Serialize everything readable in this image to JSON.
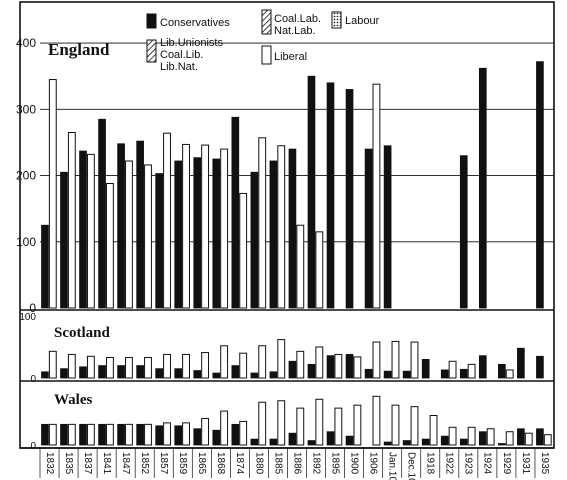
{
  "chart_data": [
    {
      "type": "bar",
      "panel": "england",
      "title": "England",
      "ylim": [
        0,
        450
      ],
      "yticks": [
        "0",
        "100",
        "200",
        "300",
        "400"
      ],
      "categories": [
        "1832",
        "1835",
        "1837",
        "1841",
        "1847",
        "1852",
        "1857",
        "1859",
        "1865",
        "1868",
        "1874",
        "1880",
        "1885",
        "1886",
        "1892",
        "1895",
        "1900",
        "1906",
        "Jan.10",
        "Dec.10",
        "1918",
        "1922",
        "1923",
        "1924",
        "1929",
        "1931",
        "1935"
      ],
      "series": [
        {
          "name": "Conservatives",
          "values": [
            125,
            205,
            237,
            285,
            248,
            252,
            203,
            222,
            227,
            225,
            288,
            205,
            222,
            240,
            350,
            340,
            330,
            240,
            245,
            0,
            0,
            0,
            230,
            362,
            0,
            0,
            372
          ]
        },
        {
          "name": "Lib.Unionists",
          "values": [
            0,
            0,
            0,
            0,
            0,
            0,
            0,
            0,
            0,
            0,
            0,
            0,
            0,
            0,
            0,
            0,
            0,
            0,
            0,
            0,
            0,
            0,
            0,
            0,
            0,
            0,
            0
          ]
        },
        {
          "name": "Coal.Lib.",
          "values": [
            0,
            0,
            0,
            0,
            0,
            0,
            0,
            0,
            0,
            0,
            0,
            0,
            0,
            0,
            0,
            0,
            0,
            0,
            0,
            0,
            0,
            0,
            0,
            0,
            0,
            0,
            0
          ]
        },
        {
          "name": "Lib.Nat.",
          "values": [
            0,
            0,
            0,
            0,
            0,
            0,
            0,
            0,
            0,
            0,
            0,
            0,
            0,
            0,
            0,
            0,
            0,
            0,
            0,
            0,
            0,
            0,
            0,
            0,
            0,
            0,
            0
          ]
        },
        {
          "name": "Coal.Lab.",
          "values": [
            0,
            0,
            0,
            0,
            0,
            0,
            0,
            0,
            0,
            0,
            0,
            0,
            0,
            0,
            0,
            0,
            0,
            0,
            0,
            0,
            0,
            0,
            0,
            0,
            0,
            0,
            0
          ]
        },
        {
          "name": "Nat.Lab.",
          "values": [
            0,
            0,
            0,
            0,
            0,
            0,
            0,
            0,
            0,
            0,
            0,
            0,
            0,
            0,
            0,
            0,
            0,
            0,
            0,
            0,
            0,
            0,
            0,
            0,
            0,
            0,
            0
          ]
        },
        {
          "name": "Labour",
          "values": [
            0,
            0,
            0,
            0,
            0,
            0,
            0,
            0,
            0,
            0,
            0,
            0,
            0,
            0,
            0,
            0,
            0,
            0,
            0,
            0,
            0,
            0,
            0,
            0,
            0,
            0,
            0
          ]
        },
        {
          "name": "Liberal",
          "values": [
            345,
            265,
            232,
            188,
            222,
            216,
            264,
            247,
            246,
            240,
            173,
            257,
            245,
            125,
            115,
            0,
            0,
            338,
            0,
            0,
            0,
            0,
            0,
            0,
            0,
            0,
            0
          ]
        }
      ]
    },
    {
      "type": "bar",
      "panel": "scotland",
      "title": "Scotland",
      "ylim": [
        0,
        100
      ],
      "yticks": [
        "0",
        "100"
      ],
      "categories": [
        "1832",
        "1835",
        "1837",
        "1841",
        "1847",
        "1852",
        "1857",
        "1859",
        "1865",
        "1868",
        "1874",
        "1880",
        "1885",
        "1886",
        "1892",
        "1895",
        "1900",
        "1906",
        "Jan.10",
        "Dec.10",
        "1918",
        "1922",
        "1923",
        "1924",
        "1929",
        "1931",
        "1935"
      ],
      "series": [
        {
          "name": "Conservatives",
          "values": [
            10,
            15,
            18,
            20,
            20,
            20,
            15,
            15,
            12,
            8,
            20,
            8,
            10,
            27,
            22,
            36,
            38,
            14,
            11,
            11,
            30,
            13,
            14,
            36,
            22,
            48,
            35
          ]
        },
        {
          "name": "Liberal",
          "values": [
            43,
            38,
            35,
            33,
            33,
            33,
            38,
            38,
            41,
            52,
            40,
            52,
            62,
            43,
            50,
            38,
            34,
            58,
            59,
            58,
            0,
            27,
            22,
            0,
            13,
            0,
            0
          ]
        }
      ]
    },
    {
      "type": "bar",
      "panel": "wales",
      "title": "Wales",
      "ylim": [
        0,
        40
      ],
      "yticks": [
        "0"
      ],
      "categories": [
        "1832",
        "1835",
        "1837",
        "1841",
        "1847",
        "1852",
        "1857",
        "1859",
        "1865",
        "1868",
        "1874",
        "1880",
        "1885",
        "1886",
        "1892",
        "1895",
        "1900",
        "1906",
        "Jan.10",
        "Dec.10",
        "1918",
        "1922",
        "1923",
        "1924",
        "1929",
        "1931",
        "1935"
      ],
      "series": [
        {
          "name": "Conservatives",
          "values": [
            14,
            14,
            14,
            14,
            14,
            14,
            13,
            13,
            11,
            10,
            14,
            4,
            4,
            8,
            3,
            9,
            6,
            0,
            2,
            3,
            4,
            6,
            4,
            9,
            1,
            11,
            11
          ]
        },
        {
          "name": "Liberal",
          "values": [
            14,
            14,
            14,
            14,
            14,
            14,
            15,
            15,
            18,
            23,
            16,
            29,
            30,
            25,
            31,
            25,
            27,
            33,
            27,
            26,
            20,
            12,
            12,
            11,
            9,
            8,
            7
          ]
        }
      ]
    }
  ],
  "legend": {
    "conservatives": "Conservatives",
    "lib_unionists": "Lib.Unionists",
    "coal_lib": "Coal.Lib.",
    "lib_nat": "Lib.Nat.",
    "coal_lab": "Coal.Lab.",
    "nat_lab": "Nat.Lab.",
    "labour": "Labour",
    "liberal": "Liberal"
  },
  "colors": {
    "conservatives": "#111111",
    "liberal": "#ffffff",
    "outline": "#111111"
  }
}
